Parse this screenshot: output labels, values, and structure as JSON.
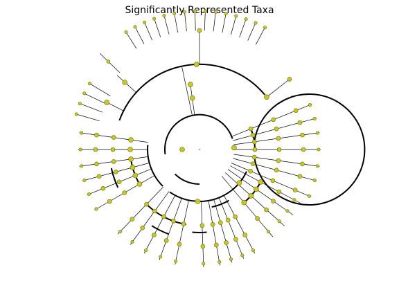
{
  "figure": {
    "title": "Significantly Represented Taxa"
  },
  "style": {
    "node_fill": "#c8c81e",
    "node_stroke": "#6b6b10",
    "edge_color": "#000000",
    "background": "#ffffff"
  }
}
